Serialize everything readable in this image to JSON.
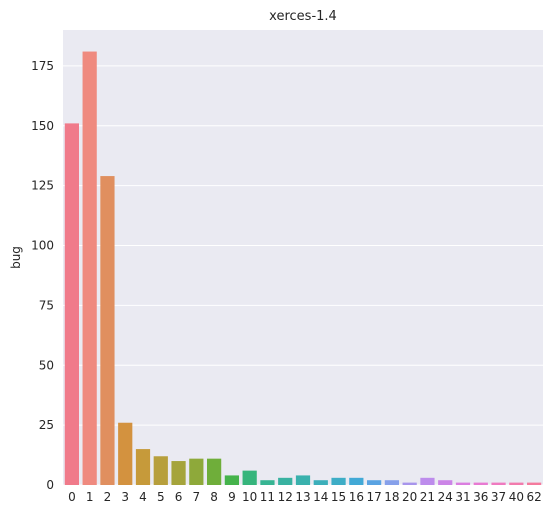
{
  "chart_data": {
    "type": "bar",
    "title": "xerces-1.4",
    "xlabel": "",
    "ylabel": "bug",
    "categories": [
      "0",
      "1",
      "2",
      "3",
      "4",
      "5",
      "6",
      "7",
      "8",
      "9",
      "10",
      "11",
      "12",
      "13",
      "14",
      "15",
      "16",
      "17",
      "18",
      "20",
      "21",
      "24",
      "31",
      "36",
      "37",
      "40",
      "62"
    ],
    "values": [
      151,
      181,
      129,
      26,
      15,
      12,
      10,
      11,
      11,
      4,
      6,
      2,
      3,
      4,
      2,
      3,
      3,
      2,
      2,
      1,
      3,
      2,
      1,
      1,
      1,
      1,
      1
    ],
    "ylim": [
      0,
      190
    ],
    "yticks": [
      0,
      25,
      50,
      75,
      100,
      125,
      150,
      175
    ],
    "grid": true,
    "legend": "none",
    "colors": [
      "#f07a8a",
      "#ef8a7f",
      "#e08f5f",
      "#d3923f",
      "#c69a3a",
      "#b79f3c",
      "#a5a43b",
      "#8ea93a",
      "#6fae3a",
      "#45b34b",
      "#36b57c",
      "#37b593",
      "#39b2a1",
      "#3ab1ad",
      "#3cafba",
      "#3eadc6",
      "#42a9d6",
      "#5aa3e2",
      "#86a0ea",
      "#a895ec",
      "#bd8cec",
      "#cc85e7",
      "#db7ee0",
      "#e87ad2",
      "#ef7ac0",
      "#f27bad",
      "#f47a9d"
    ],
    "background": "#eaeaf2"
  }
}
